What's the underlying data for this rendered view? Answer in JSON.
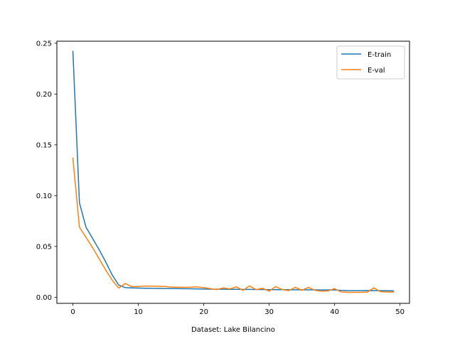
{
  "chart_data": {
    "type": "line",
    "title": "",
    "xlabel": "Dataset: Lake Bilancino",
    "ylabel": "",
    "xlim": [
      -2.45,
      51.45
    ],
    "ylim": [
      -0.006,
      0.252
    ],
    "xticks": [
      0,
      10,
      20,
      30,
      40,
      50
    ],
    "yticks": [
      0.0,
      0.05,
      0.1,
      0.15,
      0.2,
      0.25
    ],
    "ytick_labels": [
      "0.00",
      "0.05",
      "0.10",
      "0.15",
      "0.20",
      "0.25"
    ],
    "grid": false,
    "legend_position": "top-right",
    "series": [
      {
        "name": "E-train",
        "color": "#1f77b4",
        "x": [
          0,
          1,
          2,
          3,
          4,
          5,
          6,
          7,
          8,
          9,
          10,
          11,
          12,
          13,
          14,
          15,
          16,
          17,
          18,
          19,
          20,
          21,
          22,
          23,
          24,
          25,
          26,
          27,
          28,
          29,
          30,
          31,
          32,
          33,
          34,
          35,
          36,
          37,
          38,
          39,
          40,
          41,
          42,
          43,
          44,
          45,
          46,
          47,
          48,
          49
        ],
        "y": [
          0.242,
          0.093,
          0.069,
          0.058,
          0.047,
          0.035,
          0.022,
          0.012,
          0.0095,
          0.0092,
          0.009,
          0.0089,
          0.0088,
          0.0087,
          0.0086,
          0.0086,
          0.0085,
          0.0084,
          0.0083,
          0.0082,
          0.0081,
          0.008,
          0.0079,
          0.0079,
          0.0078,
          0.0078,
          0.0077,
          0.0077,
          0.0076,
          0.0076,
          0.0075,
          0.0075,
          0.0075,
          0.0074,
          0.0074,
          0.0074,
          0.0073,
          0.0073,
          0.0072,
          0.0072,
          0.0072,
          0.0068,
          0.0065,
          0.0065,
          0.0065,
          0.0066,
          0.0065,
          0.0065,
          0.0064,
          0.0063
        ]
      },
      {
        "name": "E-val",
        "color": "#ff7f0e",
        "x": [
          0,
          1,
          2,
          3,
          4,
          5,
          6,
          7,
          8,
          9,
          10,
          11,
          12,
          13,
          14,
          15,
          16,
          17,
          18,
          19,
          20,
          21,
          22,
          23,
          24,
          25,
          26,
          27,
          28,
          29,
          30,
          31,
          32,
          33,
          34,
          35,
          36,
          37,
          38,
          39,
          40,
          41,
          42,
          43,
          44,
          45,
          46,
          47,
          48,
          49
        ],
        "y": [
          0.137,
          0.069,
          0.059,
          0.049,
          0.038,
          0.027,
          0.017,
          0.009,
          0.0135,
          0.0105,
          0.0105,
          0.011,
          0.011,
          0.0108,
          0.0107,
          0.01,
          0.0098,
          0.0098,
          0.0099,
          0.0102,
          0.0095,
          0.0085,
          0.0075,
          0.0092,
          0.0082,
          0.0102,
          0.0068,
          0.0112,
          0.0075,
          0.0088,
          0.006,
          0.0105,
          0.0075,
          0.0065,
          0.0098,
          0.0068,
          0.0098,
          0.0068,
          0.006,
          0.0062,
          0.0085,
          0.0052,
          0.0048,
          0.0048,
          0.0048,
          0.005,
          0.0092,
          0.0055,
          0.0052,
          0.0052
        ]
      }
    ]
  }
}
